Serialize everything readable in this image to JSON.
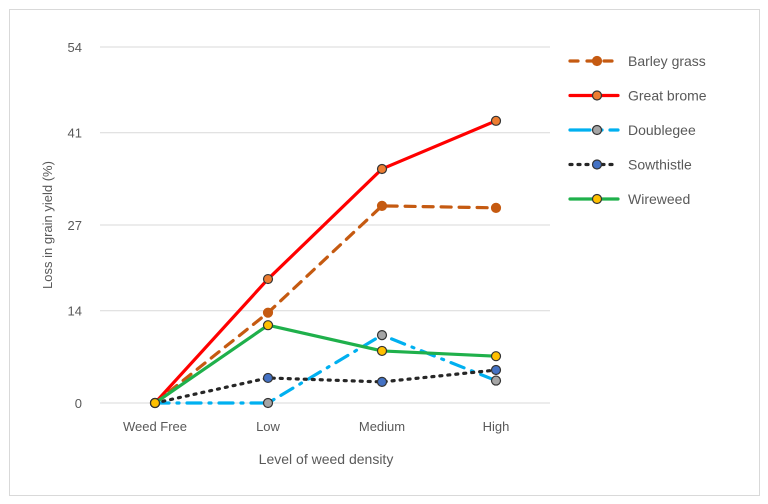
{
  "chart_data": {
    "type": "line",
    "title": "",
    "xlabel": "Level of weed density",
    "ylabel": "Loss in grain yield (%)",
    "categories": [
      "Weed Free",
      "Low",
      "Medium",
      "High"
    ],
    "yticks": [
      0,
      14,
      27,
      41,
      54
    ],
    "ylim": [
      0,
      54
    ],
    "grid": true,
    "legend": "right",
    "series": [
      {
        "name": "Barley grass",
        "values": [
          0,
          13.7,
          29.9,
          29.6
        ],
        "color": "#c55a11",
        "marker": "#c55a11",
        "dash": "10,8"
      },
      {
        "name": "Great brome",
        "values": [
          0,
          18.8,
          35.5,
          42.8
        ],
        "color": "#ff0000",
        "marker": "#ed7d31",
        "dash": ""
      },
      {
        "name": "Doublegee",
        "values": [
          0,
          0,
          10.3,
          3.4
        ],
        "color": "#00b0f0",
        "marker": "#a5a5a5",
        "dash": "14,8,2,8"
      },
      {
        "name": "Sowthistle",
        "values": [
          0,
          3.8,
          3.2,
          5.0
        ],
        "color": "#262626",
        "marker": "#4472c4",
        "dash": "2,6"
      },
      {
        "name": "Wireweed",
        "values": [
          0,
          11.8,
          7.9,
          7.1
        ],
        "color": "#1fb04b",
        "marker": "#ffc000",
        "dash": ""
      }
    ]
  }
}
